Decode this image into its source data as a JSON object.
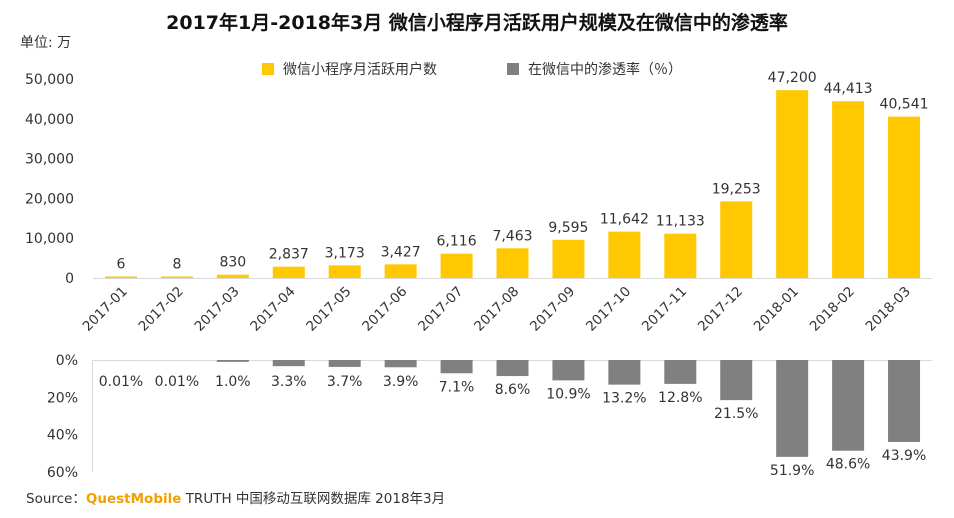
{
  "title": "2017年1月-2018年3月 微信小程序月活跃用户规模及在微信中的渗透率",
  "unit_label": "单位: 万",
  "source": {
    "prefix": "Source：",
    "brand": "QuestMobile",
    "rest": "TRUTH 中国移动互联网数据库 2018年3月"
  },
  "colors": {
    "users": "#ffc800",
    "penetration": "#808080"
  },
  "chart_data": {
    "type": "bar",
    "categories": [
      "2017-01",
      "2017-02",
      "2017-03",
      "2017-04",
      "2017-05",
      "2017-06",
      "2017-07",
      "2017-08",
      "2017-09",
      "2017-10",
      "2017-11",
      "2017-12",
      "2018-01",
      "2018-02",
      "2018-03"
    ],
    "series": [
      {
        "name": "微信小程序月活跃用户数",
        "values": [
          6,
          8,
          830,
          2837,
          3173,
          3427,
          6116,
          7463,
          9595,
          11642,
          11133,
          19253,
          47200,
          44413,
          40541
        ],
        "labels": [
          "6",
          "8",
          "830",
          "2,837",
          "3,173",
          "3,427",
          "6,116",
          "7,463",
          "9,595",
          "11,642",
          "11,133",
          "19,253",
          "47,200",
          "44,413",
          "40,541"
        ],
        "axis": {
          "ylim": [
            0,
            50000
          ],
          "ticks": [
            0,
            10000,
            20000,
            30000,
            40000,
            50000
          ],
          "tick_labels": [
            "0",
            "10,000",
            "20,000",
            "30,000",
            "40,000",
            "50,000"
          ]
        }
      },
      {
        "name": "在微信中的渗透率（％）",
        "values": [
          0.01,
          0.01,
          1.0,
          3.3,
          3.7,
          3.9,
          7.1,
          8.6,
          10.9,
          13.2,
          12.8,
          21.5,
          51.9,
          48.6,
          43.9
        ],
        "labels": [
          "0.01%",
          "0.01%",
          "1.0%",
          "3.3%",
          "3.7%",
          "3.9%",
          "7.1%",
          "8.6%",
          "10.9%",
          "13.2%",
          "12.8%",
          "21.5%",
          "51.9%",
          "48.6%",
          "43.9%"
        ],
        "axis": {
          "ylim": [
            0,
            60
          ],
          "direction": "downward",
          "ticks": [
            0,
            20,
            40,
            60
          ],
          "tick_labels": [
            "0%",
            "20%",
            "40%",
            "60%"
          ]
        }
      }
    ],
    "grid": false,
    "legend_position": "top"
  }
}
